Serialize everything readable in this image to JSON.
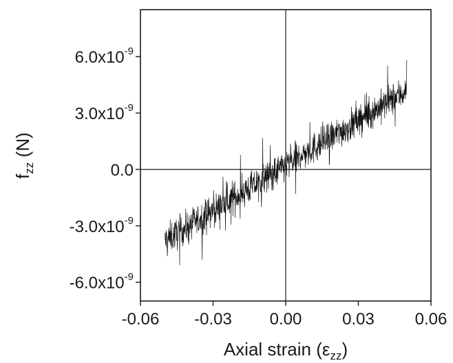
{
  "chart_data": {
    "type": "line",
    "xlabel": {
      "base": "Axial strain (",
      "symbol": "ε",
      "sub": "zz",
      "close": ")"
    },
    "ylabel": {
      "base": "f",
      "sub": "zz",
      "rest": " (N)"
    },
    "xlim": [
      -0.06,
      0.06
    ],
    "ylim": [
      -7e-09,
      8.5e-09
    ],
    "x_ticks": [
      {
        "value": -0.06,
        "label": "-0.06"
      },
      {
        "value": -0.03,
        "label": "-0.03"
      },
      {
        "value": 0.0,
        "label": "0.00"
      },
      {
        "value": 0.03,
        "label": "0.03"
      },
      {
        "value": 0.06,
        "label": "0.06"
      }
    ],
    "y_ticks": [
      {
        "value": 6e-09,
        "mantissa": "6.0x10",
        "exp": "-9"
      },
      {
        "value": 3e-09,
        "mantissa": "3.0x10",
        "exp": "-9"
      },
      {
        "value": 0.0,
        "mantissa": "0.0",
        "exp": ""
      },
      {
        "value": -3e-09,
        "mantissa": "-3.0x10",
        "exp": "-9"
      },
      {
        "value": -6e-09,
        "mantissa": "-6.0x10",
        "exp": "-9"
      }
    ],
    "reference_lines": {
      "x": 0.0,
      "y": 0.0
    },
    "grid": false,
    "series": [
      {
        "x_start": -0.05,
        "x_end": 0.05,
        "x_step": 0.0001,
        "trend_slope": 8e-08,
        "trend_intercept": 2e-10,
        "noise_amplitude": 1.2e-09,
        "color": "#111111"
      }
    ]
  }
}
